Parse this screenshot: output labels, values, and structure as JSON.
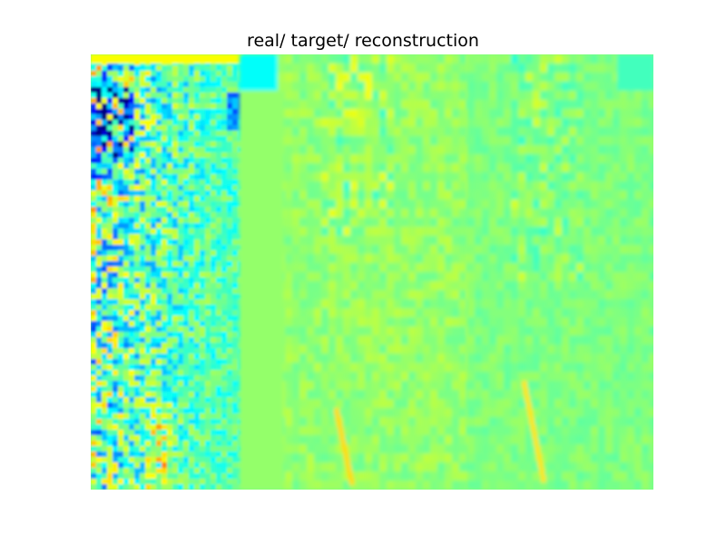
{
  "chart_data": {
    "type": "heatmap",
    "title": "real/ target/ reconstruction",
    "colormap": "jet",
    "background_color": "#80ff80",
    "axes_visible": false,
    "panels": [
      {
        "name": "real",
        "value": "high-variance fluctuations, strong negatives (dark blue) in upper rows"
      },
      {
        "name": "target",
        "value": "low-variance, mostly near zero with faint yellow streaks"
      },
      {
        "name": "reconstruction",
        "value": "low-variance, near zero with faint cyan/yellow streaks"
      }
    ]
  }
}
